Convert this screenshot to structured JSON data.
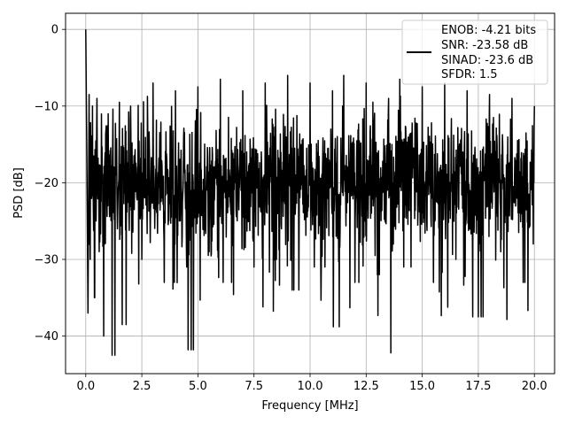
{
  "chart_data": {
    "type": "line",
    "title": "",
    "xlabel": "Frequency [MHz]",
    "ylabel": "PSD [dB]",
    "xlim": [
      -0.9,
      20.9
    ],
    "ylim": [
      -44.9,
      2.1
    ],
    "xticks": [
      0.0,
      2.5,
      5.0,
      7.5,
      10.0,
      12.5,
      15.0,
      17.5,
      20.0
    ],
    "xtick_labels": [
      "0.0",
      "2.5",
      "5.0",
      "7.5",
      "10.0",
      "12.5",
      "15.0",
      "17.5",
      "20.0"
    ],
    "yticks": [
      0,
      -10,
      -20,
      -30,
      -40
    ],
    "ytick_labels": [
      "0",
      "−10",
      "−20",
      "−30",
      "−40"
    ],
    "grid": true,
    "legend_position": "top-right",
    "legend_lines": [
      "ENOB: -4.21 bits",
      "SNR: -23.58 dB",
      "SINAD: -23.6 dB",
      "SFDR: 1.5"
    ],
    "series": [
      {
        "color": "#000000",
        "description": "dense noisy power spectral density trace, roughly -8 to -30 dB across 0-20 MHz, starting near 0 dB at DC",
        "x": [
          0.0,
          0.05,
          0.1,
          0.15,
          0.2,
          0.3,
          0.4,
          0.5,
          0.6,
          0.8,
          1.0,
          1.3,
          1.5,
          1.8,
          2.0,
          2.5,
          3.0,
          3.5,
          4.0,
          4.5,
          4.8,
          5.0,
          5.5,
          6.0,
          6.5,
          7.0,
          7.5,
          7.9,
          8.0,
          8.5,
          9.0,
          9.5,
          10.0,
          10.5,
          11.0,
          11.3,
          11.5,
          12.0,
          12.5,
          13.0,
          13.5,
          13.6,
          14.0,
          14.5,
          15.0,
          15.5,
          16.0,
          16.5,
          17.0,
          17.5,
          18.0,
          18.5,
          19.0,
          19.5,
          20.0
        ],
        "y": [
          0.0,
          -17.0,
          -37.0,
          -8.5,
          -30.0,
          -10.0,
          -35.0,
          -9.0,
          -29.0,
          -40.0,
          -11.0,
          -42.5,
          -9.5,
          -38.5,
          -10.0,
          -30.0,
          -7.0,
          -33.0,
          -8.0,
          -31.0,
          -41.8,
          -7.5,
          -29.0,
          -6.5,
          -33.0,
          -8.0,
          -31.0,
          -36.2,
          -7.0,
          -30.0,
          -6.0,
          -34.0,
          -7.0,
          -31.0,
          -8.0,
          -38.8,
          -6.0,
          -33.0,
          -7.0,
          -32.0,
          -9.0,
          -42.2,
          -6.5,
          -31.0,
          -7.5,
          -33.0,
          -7.0,
          -30.0,
          -8.0,
          -37.5,
          -8.5,
          -29.0,
          -9.0,
          -33.0,
          -10.0
        ]
      }
    ]
  }
}
